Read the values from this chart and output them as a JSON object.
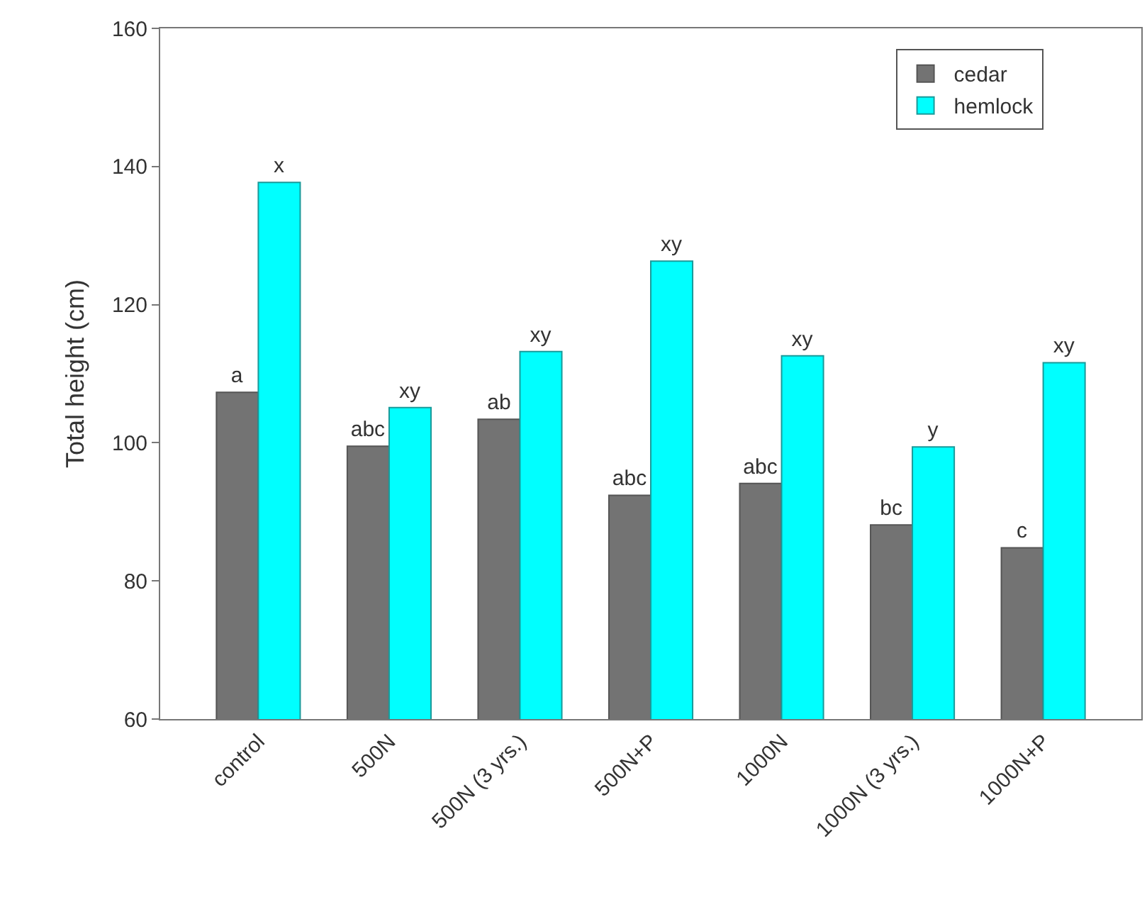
{
  "chart_data": {
    "type": "bar",
    "ylabel": "Total height (cm)",
    "categories": [
      "control",
      "500N",
      "500N (3 yrs.)",
      "500N+P",
      "1000N",
      "1000N (3 yrs.)",
      "1000N+P"
    ],
    "series": [
      {
        "name": "cedar",
        "color": "#737373",
        "values": [
          107.3,
          99.5,
          103.4,
          92.4,
          94.1,
          88.1,
          84.8
        ],
        "value_labels": [
          "a",
          "abc",
          "ab",
          "abc",
          "abc",
          "bc",
          "c"
        ]
      },
      {
        "name": "hemlock",
        "color": "#00ffff",
        "values": [
          137.7,
          105.1,
          113.2,
          126.3,
          112.6,
          99.4,
          111.6
        ],
        "value_labels": [
          "x",
          "xy",
          "xy",
          "xy",
          "xy",
          "y",
          "xy"
        ]
      }
    ],
    "ylim": [
      60,
      160
    ],
    "yticks": [
      60,
      80,
      100,
      120,
      140,
      160
    ],
    "grid": false,
    "legend": "top right"
  }
}
